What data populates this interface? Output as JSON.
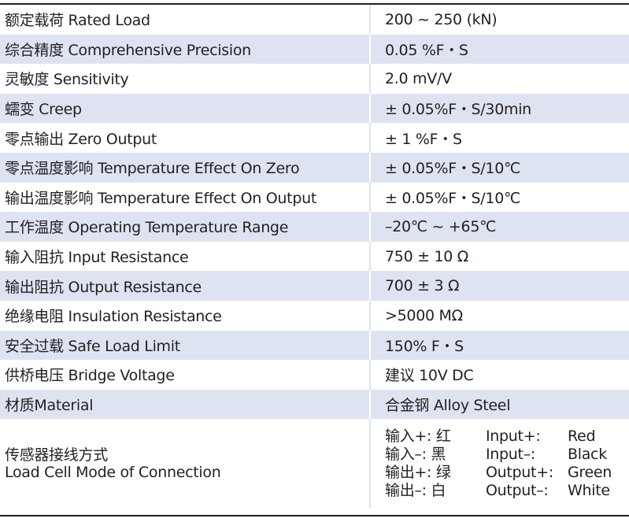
{
  "rows": [
    {
      "param": "额定载荷 Rated Load",
      "value": "200 ~ 250 (kN)"
    },
    {
      "param": "综合精度 Comprehensive Precision",
      "value": "0.05 %F・S"
    },
    {
      "param": "灵敏度 Sensitivity",
      "value": "2.0 mV/V"
    },
    {
      "param": "蠕变 Creep",
      "value": "± 0.05%F・S/30min"
    },
    {
      "param": "零点输出 Zero Output",
      "value": "± 1 %F・S"
    },
    {
      "param": "零点温度影响 Temperature Effect On Zero",
      "value": "± 0.05%F・S/10℃"
    },
    {
      "param": "输出温度影响 Temperature Effect On Output",
      "value": "± 0.05%F・S/10℃"
    },
    {
      "param": "工作温度 Operating Temperature Range",
      "value": "–20℃ ~ +65℃"
    },
    {
      "param": "输入阻抗 Input Resistance",
      "value": "750 ± 10 Ω"
    },
    {
      "param": "输出阻抗 Output Resistance",
      "value": "700 ± 3 Ω"
    },
    {
      "param": "绝缘电阻 Insulation Resistance",
      "value": ">5000 MΩ"
    },
    {
      "param": "安全过载 Safe Load Limit",
      "value": "150% F・S"
    },
    {
      "param": "供桥电压 Bridge Voltage",
      "value": "建议 10V DC"
    },
    {
      "param": "材质Material",
      "value": "合金钢 Alloy Steel"
    }
  ],
  "wiring": {
    "name_cn": "传感器接线方式",
    "name_en": "Load Cell Mode of Connection",
    "lines": [
      {
        "cn": "输入+:  红",
        "en": "Input+:",
        "color": "Red"
      },
      {
        "cn": "输入–:  黑",
        "en": "Input–:",
        "color": "Black"
      },
      {
        "cn": "输出+:  绿",
        "en": "Output+:",
        "color": "Green"
      },
      {
        "cn": "输出–:  白",
        "en": "Output–:",
        "color": "White"
      }
    ]
  }
}
